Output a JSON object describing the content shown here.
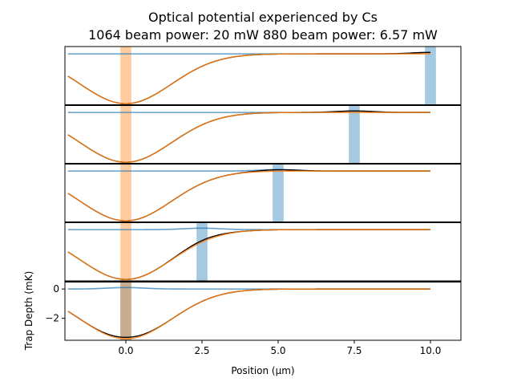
{
  "chart_data": {
    "type": "line",
    "title": "Optical potential experienced by Cs",
    "subtitle": "1064 beam power: 20 mW   880 beam power: 6.57 mW",
    "xlabel": "Position (μm)",
    "ylabel": "Trap Depth (mK)",
    "xlim": [
      -2.0,
      11.0
    ],
    "ylim": [
      -3.5,
      0.5
    ],
    "x_ticks": [
      "0.0",
      "2.5",
      "5.0",
      "7.5",
      "10.0"
    ],
    "x_tick_values": [
      0.0,
      2.5,
      5.0,
      7.5,
      10.0
    ],
    "y_ticks": [
      "0",
      "−2"
    ],
    "y_tick_values": [
      0,
      -2
    ],
    "grid": false,
    "panels": [
      {
        "beam_1064_position": 0.0,
        "beam_880_position": 10.0
      },
      {
        "beam_1064_position": 0.0,
        "beam_880_position": 7.5
      },
      {
        "beam_1064_position": 0.0,
        "beam_880_position": 5.0
      },
      {
        "beam_1064_position": 0.0,
        "beam_880_position": 2.5
      },
      {
        "beam_1064_position": 0.0,
        "beam_880_position": 0.0
      }
    ],
    "potential_model": {
      "depth_1064": -3.4,
      "waist_1064": 3.0,
      "depth_880": 0.1,
      "waist_880": 1.2
    },
    "series_colors": {
      "total": "#000000",
      "beam_1064": "#ff7f0e",
      "beam_880": "#1f77b4"
    }
  }
}
